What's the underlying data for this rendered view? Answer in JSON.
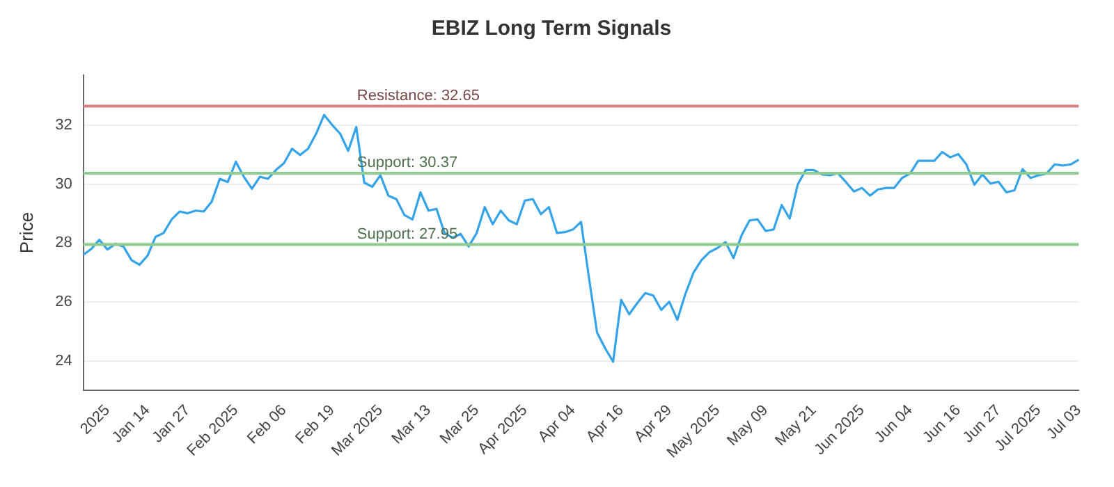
{
  "chart_data": {
    "type": "line",
    "title": "EBIZ Long Term Signals",
    "ylabel": "Price",
    "categories": [
      null,
      null,
      null,
      "2025",
      null,
      null,
      null,
      null,
      "Jan 14",
      null,
      null,
      null,
      null,
      "Jan 27",
      null,
      null,
      null,
      null,
      null,
      "Feb 2025",
      null,
      null,
      null,
      null,
      null,
      "Feb 06",
      null,
      null,
      null,
      null,
      null,
      "Feb 19",
      null,
      null,
      null,
      null,
      null,
      "Mar 2025",
      null,
      null,
      null,
      null,
      null,
      "Mar 13",
      null,
      null,
      null,
      null,
      null,
      "Mar 25",
      null,
      null,
      null,
      null,
      null,
      "Apr 2025",
      null,
      null,
      null,
      null,
      null,
      "Apr 04",
      null,
      null,
      null,
      null,
      null,
      "Apr 16",
      null,
      null,
      null,
      null,
      null,
      "Apr 29",
      null,
      null,
      null,
      null,
      null,
      "May 2025",
      null,
      null,
      null,
      null,
      null,
      "May 09",
      null,
      null,
      null,
      null,
      null,
      "May 21",
      null,
      null,
      null,
      null,
      null,
      "Jun 2025",
      null,
      null,
      null,
      null,
      null,
      "Jun 04",
      null,
      null,
      null,
      null,
      null,
      "Jun 16",
      null,
      null,
      null,
      null,
      "Jun 27",
      null,
      null,
      null,
      null,
      "Jul 2025",
      null,
      null,
      null,
      null,
      "Jul 03"
    ],
    "series": [
      {
        "color": "#35a3e8",
        "values": [
          27.6,
          27.8,
          28.11,
          27.78,
          27.97,
          27.88,
          27.42,
          27.26,
          27.57,
          28.21,
          28.34,
          28.8,
          29.07,
          29.01,
          29.1,
          29.07,
          29.41,
          30.18,
          30.07,
          30.76,
          30.25,
          29.84,
          30.25,
          30.18,
          30.48,
          30.71,
          31.2,
          30.99,
          31.2,
          31.71,
          32.35,
          32.01,
          31.71,
          31.13,
          31.94,
          30.05,
          29.91,
          30.3,
          29.61,
          29.49,
          28.95,
          28.8,
          29.72,
          29.1,
          29.16,
          28.34,
          28.18,
          28.31,
          27.88,
          28.34,
          29.22,
          28.64,
          29.1,
          28.77,
          28.64,
          29.44,
          29.49,
          28.98,
          29.22,
          28.34,
          28.37,
          28.46,
          28.72,
          26.8,
          24.96,
          24.43,
          23.97,
          26.07,
          25.58,
          25.96,
          26.3,
          26.22,
          25.73,
          26.01,
          25.39,
          26.27,
          26.99,
          27.42,
          27.69,
          27.83,
          28.03,
          27.49,
          28.26,
          28.77,
          28.8,
          28.41,
          28.46,
          29.29,
          28.83,
          29.99,
          30.48,
          30.48,
          30.33,
          30.3,
          30.37,
          30.07,
          29.75,
          29.87,
          29.61,
          29.82,
          29.87,
          29.87,
          30.21,
          30.36,
          30.79,
          30.79,
          30.79,
          31.09,
          30.91,
          31.02,
          30.67,
          29.98,
          30.33,
          30.02,
          30.08,
          29.72,
          29.79,
          30.51,
          30.21,
          30.3,
          30.36,
          30.67,
          30.63,
          30.67,
          30.83
        ]
      }
    ],
    "ylim": [
      23,
      33.7
    ],
    "yticks": [
      24,
      26,
      28,
      30,
      32
    ],
    "grid": "y",
    "legend": false,
    "marker": "none",
    "line_style": "solid",
    "ref_lines": [
      {
        "axis": "y",
        "value": 32.65,
        "label": "Resistance: 32.65",
        "color": "#d98080"
      },
      {
        "axis": "y",
        "value": 30.37,
        "label": "Support: 30.37",
        "color": "#8fcc8f"
      },
      {
        "axis": "y",
        "value": 27.95,
        "label": "Support: 27.95",
        "color": "#8fcc8f"
      }
    ]
  }
}
